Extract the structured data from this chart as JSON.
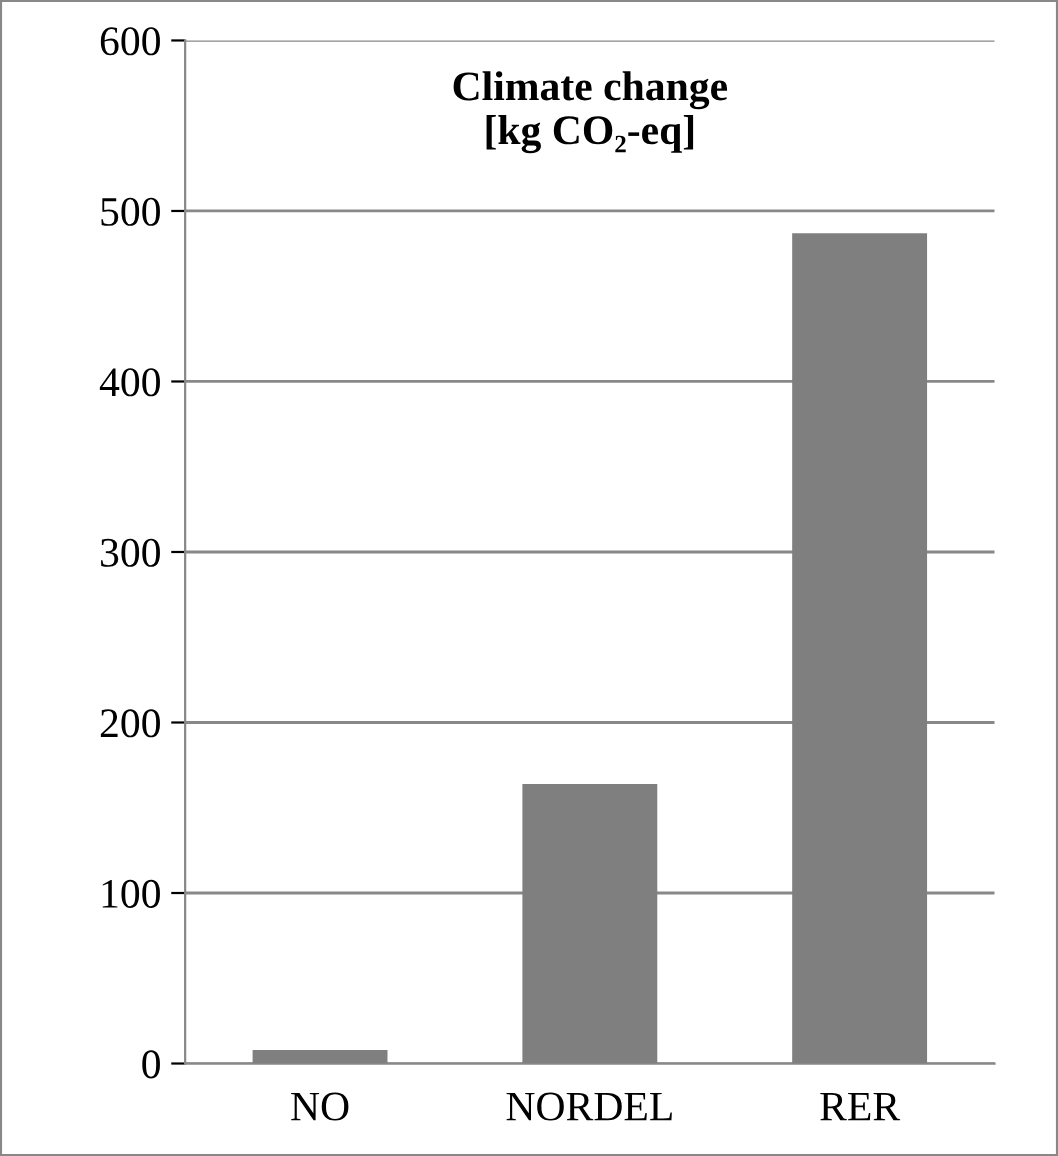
{
  "chart_data": {
    "type": "bar",
    "title": "Climate change\n[kg CO₂-eq]",
    "categories": [
      "NO",
      "NORDEL",
      "RER"
    ],
    "values": [
      8,
      164,
      487
    ],
    "color": "#7f7f7f",
    "ylim": [
      0,
      600
    ],
    "yticks": [
      0,
      100,
      200,
      300,
      400,
      500,
      600
    ],
    "grid": "y",
    "legend": false
  }
}
